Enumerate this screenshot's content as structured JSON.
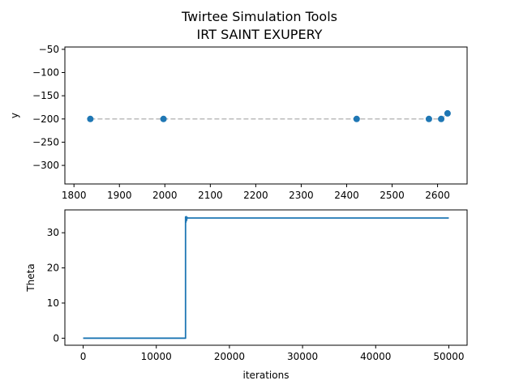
{
  "title": "Twirtee Simulation Tools",
  "subtitle": "IRT SAINT EXUPERY",
  "chart_data": [
    {
      "type": "scatter",
      "ylabel": "y",
      "xlim": [
        1780,
        2665
      ],
      "ylim": [
        -340,
        -45
      ],
      "xticks": [
        1800,
        1900,
        2000,
        2100,
        2200,
        2300,
        2400,
        2500,
        2600
      ],
      "yticks": [
        -50,
        -100,
        -150,
        -200,
        -250,
        -300
      ],
      "grid": false,
      "series": [
        {
          "line_style": "dashed",
          "line_color": "#bbbbbb",
          "marker_color": "#1f77b4",
          "x": [
            1836,
            1997,
            2422,
            2581,
            2608,
            2622
          ],
          "y": [
            -200,
            -200,
            -200,
            -200,
            -200,
            -188
          ]
        }
      ]
    },
    {
      "type": "line",
      "xlabel": "iterations",
      "ylabel": "Theta",
      "xlim": [
        -2500,
        52500
      ],
      "ylim": [
        -2,
        36.5
      ],
      "xticks": [
        0,
        10000,
        20000,
        30000,
        40000,
        50000
      ],
      "yticks": [
        0,
        10,
        20,
        30
      ],
      "grid": false,
      "series": [
        {
          "color": "#1f77b4",
          "x": [
            0,
            14000,
            14000,
            14050,
            14100,
            14150,
            14200,
            14300,
            50000
          ],
          "y": [
            0,
            0,
            34.5,
            33.0,
            34.6,
            33.5,
            34.4,
            34.2,
            34.2
          ]
        }
      ]
    }
  ]
}
